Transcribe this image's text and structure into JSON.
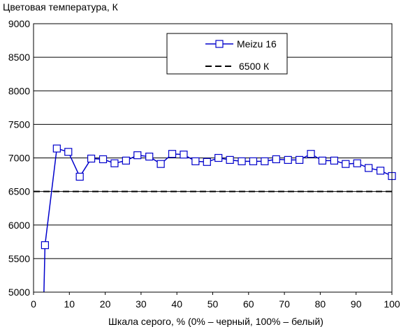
{
  "chart_data": {
    "type": "line",
    "title": "",
    "ylabel": "Цветовая температура, К",
    "xlabel": "Шкала серого, % (0% – черный, 100% – белый)",
    "xlim": [
      0,
      100
    ],
    "ylim": [
      5000,
      9000
    ],
    "xticks": [
      "0",
      "10",
      "20",
      "30",
      "40",
      "50",
      "60",
      "70",
      "80",
      "90",
      "100"
    ],
    "yticks": [
      "5000",
      "5500",
      "6000",
      "6500",
      "7000",
      "7500",
      "8000",
      "8500",
      "9000"
    ],
    "grid": "horizontal",
    "legend_position": "top-right",
    "series": [
      {
        "name": "Meizu 16",
        "color": "#0000cc",
        "marker": "square",
        "x": [
          3.2,
          6.5,
          9.7,
          12.9,
          16.1,
          19.4,
          22.6,
          25.8,
          29.0,
          32.3,
          35.5,
          38.7,
          41.9,
          45.2,
          48.4,
          51.6,
          54.8,
          58.1,
          61.3,
          64.5,
          67.7,
          71.0,
          74.2,
          77.4,
          80.6,
          83.9,
          87.1,
          90.3,
          93.5,
          96.8,
          100.0
        ],
        "y": [
          5700,
          7140,
          7090,
          6720,
          6990,
          6980,
          6920,
          6960,
          7040,
          7020,
          6910,
          7060,
          7050,
          6950,
          6940,
          7000,
          6970,
          6950,
          6950,
          6950,
          6980,
          6970,
          6970,
          7060,
          6960,
          6960,
          6910,
          6920,
          6850,
          6810,
          6730
        ],
        "lead_in": {
          "x": 2.9,
          "y": 5000
        }
      },
      {
        "name": "6500 К",
        "color": "#000000",
        "style": "dashed",
        "x": [
          0,
          100
        ],
        "y": [
          6500,
          6500
        ]
      }
    ]
  }
}
